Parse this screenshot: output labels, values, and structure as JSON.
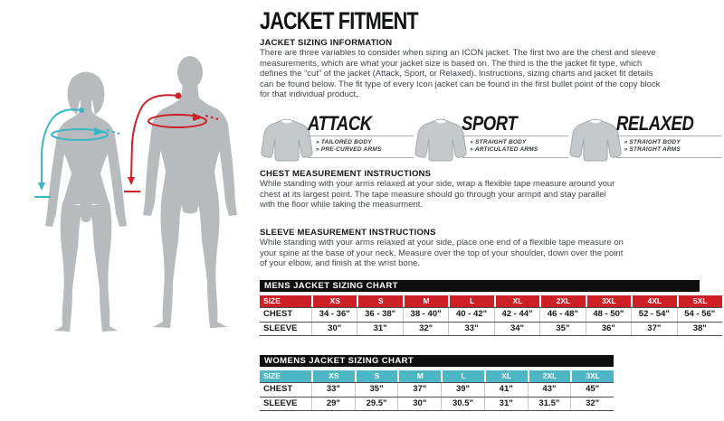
{
  "page": {
    "title": "JACKET FITMENT"
  },
  "colors": {
    "table_red": "#cd2026",
    "table_teal": "#4db6c5",
    "title_bar_black": "#0f0f0f",
    "silhouette_gray": "#b7bbbe",
    "jacket_gray": "#c6c9cb",
    "woman_arrow_cyan": "#3ab6c7",
    "man_arrow_red": "#cb2128"
  },
  "sizing_information": {
    "heading": "JACKET SIZING INFORMATION",
    "body": "There are three variables to consider when sizing an ICON jacket. The first two are the chest and sleeve\nmeasurements, which are what your jacket size is based on. The third is the the jacket fit type, which\ndefines the “cut” of the jacket (Attack, Sport, or Relaxed). Instructions, sizing charts and jacket fit details\ncan be found below. The fit type of every Icon jacket can be found in the first bullet point of the copy block\nfor that individual product."
  },
  "fits": [
    {
      "name": "ATTACK",
      "bullets": [
        "» TAILORED BODY",
        "» PRE-CURVED ARMS"
      ]
    },
    {
      "name": "SPORT",
      "bullets": [
        "» STRAIGHT BODY",
        "» ARTICULATED ARMS"
      ]
    },
    {
      "name": "RELAXED",
      "bullets": [
        "» STRAIGHT BODY",
        "» STRAIGHT ARMS"
      ]
    }
  ],
  "chest_instructions": {
    "heading": "CHEST MEASUREMENT INSTRUCTIONS",
    "body": "While standing with your arms relaxed at your side, wrap a flexible tape measure around your\nchest at its largest point. The tape measure should go through your armpit and stay parallel\nwith the floor while taking the measurment."
  },
  "sleeve_instructions": {
    "heading": "SLEEVE MEASUREMENT INSTRUCTIONS",
    "body": "While standing with your arms relaxed at your side, place one end of a flexible tape measure on\nyour spine at the base of your neck. Measure over the top of your shoulder, down over the point\nof your elbow, and finish at the wrist bone."
  },
  "mens_chart": {
    "title": "MENS JACKET SIZING CHART",
    "header": [
      "SIZE",
      "XS",
      "S",
      "M",
      "L",
      "XL",
      "2XL",
      "3XL",
      "4XL",
      "5XL"
    ],
    "rows": [
      [
        "CHEST",
        "34 - 36\"",
        "36 - 38\"",
        "38 - 40\"",
        "40 - 42\"",
        "42 - 44\"",
        "46 - 48\"",
        "48 - 50\"",
        "52 - 54\"",
        "54 - 56\""
      ],
      [
        "SLEEVE",
        "30\"",
        "31\"",
        "32\"",
        "33\"",
        "34\"",
        "35\"",
        "36\"",
        "37\"",
        "38\""
      ]
    ]
  },
  "womens_chart": {
    "title": "WOMENS JACKET SIZING CHART",
    "header": [
      "SIZE",
      "XS",
      "S",
      "M",
      "L",
      "XL",
      "2XL",
      "3XL"
    ],
    "rows": [
      [
        "CHEST",
        "33\"",
        "35\"",
        "37\"",
        "39\"",
        "41\"",
        "43\"",
        "45\""
      ],
      [
        "SLEEVE",
        "29\"",
        "29.5\"",
        "30\"",
        "30.5\"",
        "31\"",
        "31.5\"",
        "32\""
      ]
    ]
  }
}
